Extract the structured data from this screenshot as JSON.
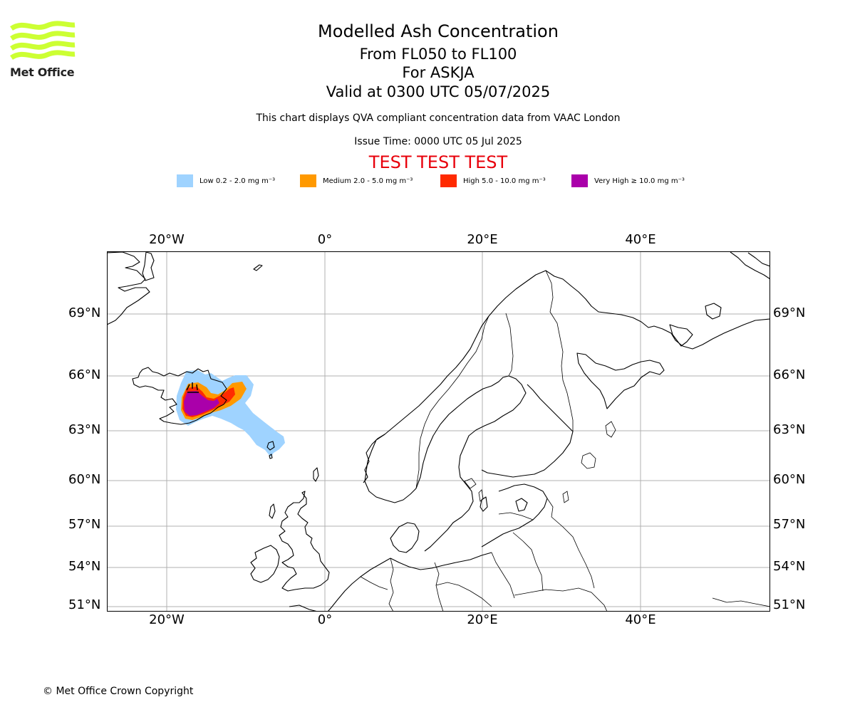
{
  "logo": {
    "text": "Met Office",
    "colors": {
      "waves": "#ccff33"
    }
  },
  "title": "Modelled Ash Concentration",
  "subtitle_lines": [
    "From FL050 to FL100",
    "For ASKJA",
    "Valid at 0300 UTC 05/07/2025"
  ],
  "qva_note": "This chart displays QVA compliant concentration data from VAAC London",
  "issue_time": "Issue Time: 0000 UTC 05 Jul 2025",
  "test_banner": "TEST TEST TEST",
  "legend": [
    {
      "label": "Low 0.2 - 2.0 mg m⁻³",
      "color": "#9fd3ff"
    },
    {
      "label": "Medium 2.0 - 5.0 mg m⁻³",
      "color": "#ff9900"
    },
    {
      "label": "High 5.0 - 10.0 mg m⁻³",
      "color": "#ff2a00"
    },
    {
      "label": "Very High  ≥  10.0 mg m⁻³",
      "color": "#aa00aa"
    }
  ],
  "map": {
    "lon_labels": [
      "20°W",
      "0°",
      "20°E",
      "40°E"
    ],
    "lat_labels": [
      "69°N",
      "66°N",
      "63°N",
      "60°N",
      "57°N",
      "54°N",
      "51°N"
    ],
    "gridline_color": "#b0b0b0",
    "volcano": "ASKJA"
  },
  "copyright": "© Met Office Crown Copyright"
}
